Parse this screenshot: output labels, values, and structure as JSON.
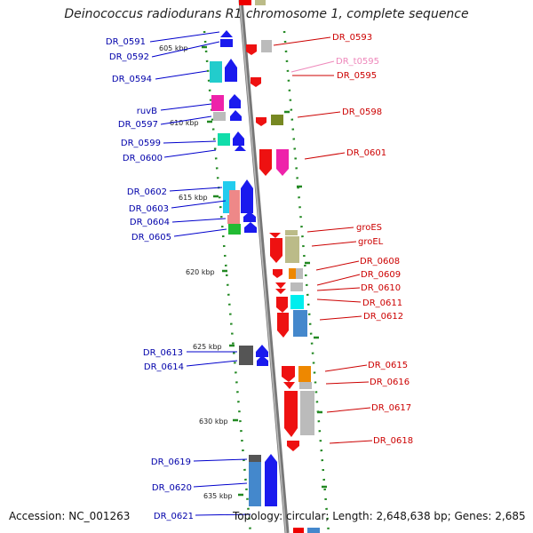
{
  "title": "Deinococcus radiodurans R1 chromosome 1, complete sequence",
  "footer": {
    "accession": "Accession: NC_001263",
    "stats": "Topology: circular; Length: 2,648,638 bp; Genes: 2,685"
  },
  "colors": {
    "forward": "#0000ee",
    "reverse": "#ee0000",
    "trna": "#ee88aa",
    "backbone": "#888888",
    "tick": "#228822"
  },
  "kbp_labels": [
    "605 kbp",
    "610 kbp",
    "615 kbp",
    "620 kbp",
    "625 kbp",
    "630 kbp",
    "635 kbp"
  ],
  "left_genes": [
    "DR_0591",
    "DR_0592",
    "DR_0594",
    "ruvB",
    "DR_0597",
    "DR_0599",
    "DR_0600",
    "DR_0602",
    "DR_0603",
    "DR_0604",
    "DR_0605",
    "DR_0613",
    "DR_0614",
    "DR_0619",
    "DR_0620",
    "DR_0621"
  ],
  "right_genes": [
    "DR_0593",
    "DR_t0595",
    "DR_0595",
    "DR_0598",
    "DR_0601",
    "groES",
    "groEL",
    "DR_0608",
    "DR_0609",
    "DR_0610",
    "DR_0611",
    "DR_0612",
    "DR_0615",
    "DR_0616",
    "DR_0617",
    "DR_0618"
  ]
}
